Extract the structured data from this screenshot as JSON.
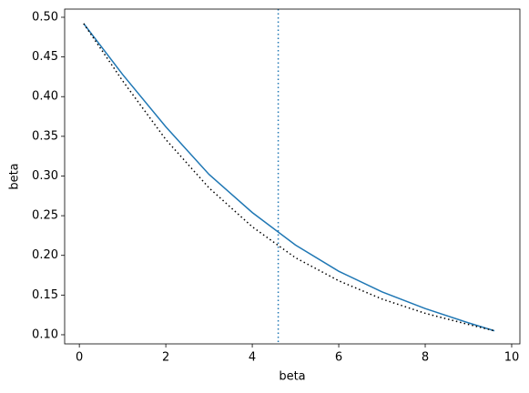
{
  "chart_data": {
    "type": "line",
    "xlabel": "beta",
    "ylabel": "beta",
    "x": [
      0.1,
      1,
      2,
      3,
      4,
      5,
      6,
      7,
      8,
      9,
      9.6
    ],
    "series": [
      {
        "color": "#1f77b4",
        "linestyle": "solid",
        "values": [
          0.492,
          0.428,
          0.362,
          0.302,
          0.254,
          0.213,
          0.18,
          0.154,
          0.133,
          0.115,
          0.105
        ]
      },
      {
        "color": "#000000",
        "linestyle": "dotted",
        "values": [
          0.492,
          0.42,
          0.346,
          0.285,
          0.236,
          0.197,
          0.168,
          0.145,
          0.127,
          0.113,
          0.105
        ]
      }
    ],
    "vline": {
      "x": 4.6,
      "color": "#1f77b4",
      "linestyle": "dotted"
    },
    "xlim": [
      -0.34,
      10.19
    ],
    "ylim": [
      0.0885,
      0.5103
    ],
    "xticks": [
      0,
      2,
      4,
      6,
      8,
      10
    ],
    "yticks": [
      {
        "value": 0.1,
        "label": "0.10"
      },
      {
        "value": 0.15,
        "label": "0.15"
      },
      {
        "value": 0.2,
        "label": "0.20"
      },
      {
        "value": 0.25,
        "label": "0.25"
      },
      {
        "value": 0.3,
        "label": "0.30"
      },
      {
        "value": 0.35,
        "label": "0.35"
      },
      {
        "value": 0.4,
        "label": "0.40"
      },
      {
        "value": 0.45,
        "label": "0.45"
      },
      {
        "value": 0.5,
        "label": "0.50"
      }
    ],
    "grid": false
  }
}
